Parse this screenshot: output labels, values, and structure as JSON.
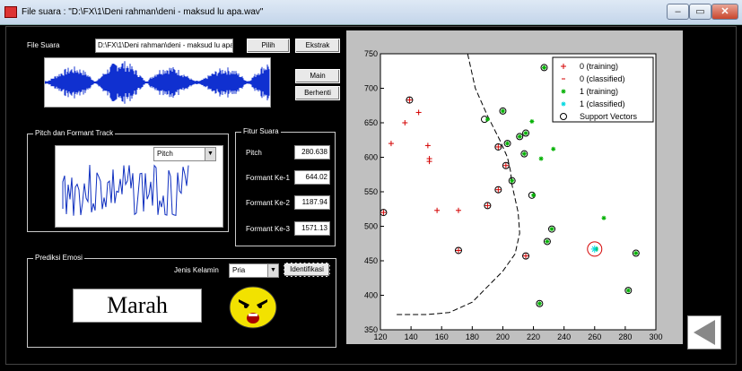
{
  "window": {
    "title": "File suara : \"D:\\FX\\1\\Deni rahman\\deni - maksud lu apa.wav\""
  },
  "file": {
    "label": "File Suara",
    "path": "D:\\FX\\1\\Deni rahman\\deni - maksud lu apa",
    "pilih": "Pilih",
    "ekstrak": "Ekstrak",
    "main": "Main",
    "berhenti": "Berhenti"
  },
  "pitch_panel": {
    "title": "Pitch dan Formant Track",
    "dropdown": "Pitch"
  },
  "fitur": {
    "title": "Fitur Suara",
    "rows": [
      {
        "label": "Pitch",
        "value": "280.638"
      },
      {
        "label": "Formant Ke-1",
        "value": "644.02"
      },
      {
        "label": "Formant Ke-2",
        "value": "1187.94"
      },
      {
        "label": "Formant Ke-3",
        "value": "1571.13"
      }
    ]
  },
  "prediksi": {
    "title": "Prediksi Emosi",
    "jenis_label": "Jenis Kelamin",
    "jenis_value": "Pria",
    "identifikasi": "Identifikasi",
    "result": "Marah"
  },
  "colors": {
    "class0": "#d40000",
    "class1": "#00b000",
    "classified1": "#00d8e0",
    "boundary": "#000000"
  },
  "chart_data": {
    "type": "scatter",
    "xlim": [
      120,
      300
    ],
    "ylim": [
      350,
      750
    ],
    "xticks": [
      "120",
      "140",
      "160",
      "180",
      "200",
      "220",
      "240",
      "260",
      "280",
      "300"
    ],
    "yticks": [
      "350",
      "400",
      "450",
      "500",
      "550",
      "600",
      "650",
      "700",
      "750"
    ],
    "legend": [
      "0 (training)",
      "0 (classified)",
      "1 (training)",
      "1 (classified)",
      "Support Vectors"
    ],
    "legend_position": "top-right",
    "series": [
      {
        "name": "0 (training)",
        "marker": "plus",
        "points": [
          [
            122,
            520
          ],
          [
            127,
            620
          ],
          [
            136,
            650
          ],
          [
            139,
            683
          ],
          [
            145,
            665
          ],
          [
            151,
            617
          ],
          [
            152,
            598
          ],
          [
            152,
            594
          ],
          [
            157,
            523
          ],
          [
            171,
            523
          ],
          [
            171,
            465
          ],
          [
            190,
            530
          ],
          [
            197,
            615
          ],
          [
            197,
            553
          ],
          [
            202,
            588
          ],
          [
            215,
            457
          ]
        ]
      },
      {
        "name": "1 (training)",
        "marker": "star",
        "points": [
          [
            190,
            655
          ],
          [
            200,
            667
          ],
          [
            203,
            620
          ],
          [
            206,
            566
          ],
          [
            211,
            630
          ],
          [
            214,
            605
          ],
          [
            215,
            635
          ],
          [
            219,
            652
          ],
          [
            220,
            545
          ],
          [
            225,
            598
          ],
          [
            227,
            730
          ],
          [
            229,
            478
          ],
          [
            232,
            496
          ],
          [
            233,
            612
          ],
          [
            234,
            665
          ],
          [
            261,
            467
          ],
          [
            266,
            512
          ],
          [
            282,
            407
          ],
          [
            287,
            461
          ],
          [
            224,
            388
          ]
        ]
      },
      {
        "name": "1 (classified)",
        "marker": "star",
        "points": [
          [
            260,
            467
          ]
        ]
      }
    ],
    "support_vectors": [
      [
        122,
        520
      ],
      [
        139,
        683
      ],
      [
        171,
        465
      ],
      [
        188,
        655
      ],
      [
        190,
        530
      ],
      [
        197,
        615
      ],
      [
        197,
        553
      ],
      [
        202,
        588
      ],
      [
        203,
        620
      ],
      [
        206,
        566
      ],
      [
        211,
        630
      ],
      [
        215,
        635
      ],
      [
        215,
        457
      ],
      [
        219,
        545
      ],
      [
        224,
        388
      ],
      [
        229,
        478
      ],
      [
        232,
        496
      ],
      [
        282,
        407
      ],
      [
        287,
        461
      ],
      [
        227,
        730
      ],
      [
        200,
        667
      ],
      [
        214,
        605
      ]
    ],
    "decision_boundary": [
      [
        177,
        750
      ],
      [
        182,
        700
      ],
      [
        190,
        660
      ],
      [
        198,
        625
      ],
      [
        203,
        600
      ],
      [
        205,
        580
      ],
      [
        206,
        560
      ],
      [
        210,
        520
      ],
      [
        211,
        490
      ],
      [
        208,
        460
      ],
      [
        200,
        435
      ],
      [
        180,
        390
      ],
      [
        165,
        375
      ],
      [
        150,
        372
      ],
      [
        130,
        372
      ]
    ]
  }
}
